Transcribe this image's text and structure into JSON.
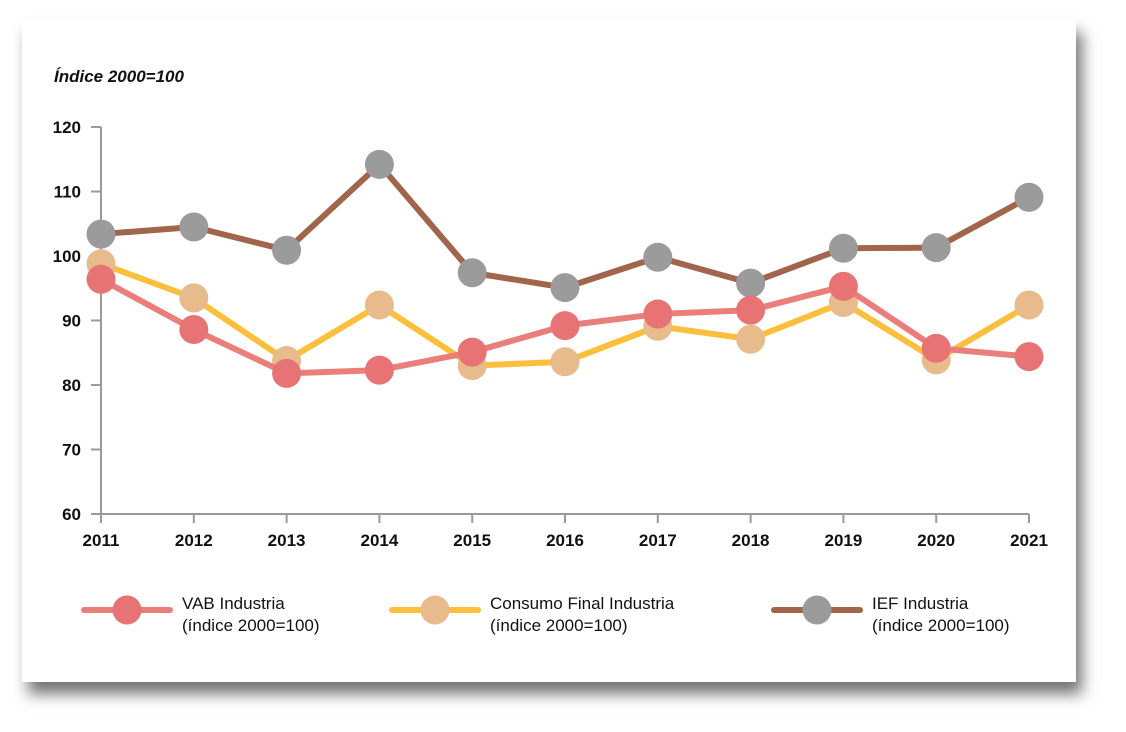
{
  "chart_data": {
    "type": "line",
    "y_unit_label": "Índice 2000=100",
    "x": [
      "2011",
      "2012",
      "2013",
      "2014",
      "2015",
      "2016",
      "2017",
      "2018",
      "2019",
      "2020",
      "2021"
    ],
    "ylim": [
      60,
      120
    ],
    "yticks": [
      60,
      70,
      80,
      90,
      100,
      110,
      120
    ],
    "grid": false,
    "legend_position": "bottom",
    "series": [
      {
        "name": "IEF Industria",
        "name_line2": "(índice 2000=100)",
        "line_color": "#a0654a",
        "marker_color": "#9b9b9b",
        "values": [
          103.4,
          104.5,
          100.9,
          114.2,
          97.4,
          95.1,
          99.8,
          95.8,
          101.2,
          101.3,
          109.1
        ]
      },
      {
        "name": "Consumo Final Industria",
        "name_line2": "(índice 2000=100)",
        "line_color": "#fbbf3c",
        "marker_color": "#e8bb8c",
        "values": [
          98.8,
          93.5,
          83.8,
          92.4,
          83.0,
          83.6,
          89.1,
          87.1,
          92.8,
          83.9,
          92.4
        ]
      },
      {
        "name": "VAB Industria",
        "name_line2": "(índice 2000=100)",
        "line_color": "#ea7e7b",
        "marker_color": "#e87375",
        "values": [
          96.4,
          88.6,
          81.8,
          82.3,
          85.1,
          89.2,
          91.0,
          91.6,
          95.3,
          85.7,
          84.4
        ]
      }
    ]
  }
}
